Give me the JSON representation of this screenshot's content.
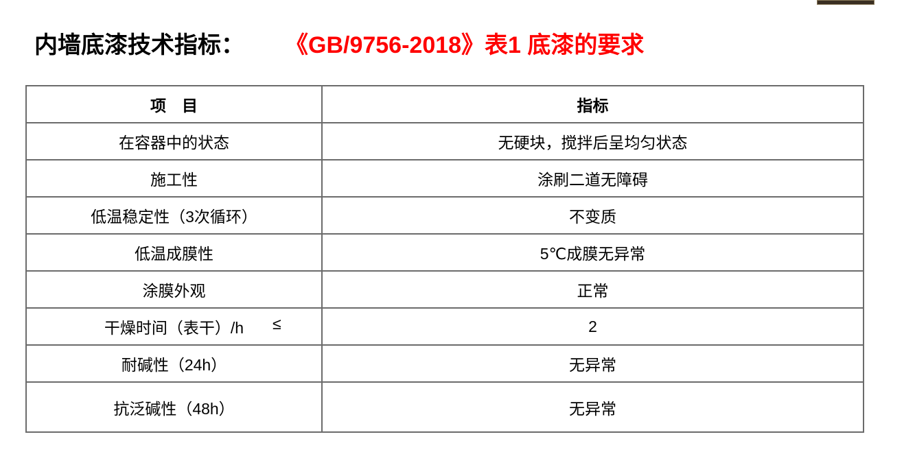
{
  "title": {
    "prefix": "内墙底漆技术指标：",
    "standard": "《GB/9756-2018》表1 底漆的要求"
  },
  "table": {
    "headers": [
      "项　目",
      "指标"
    ],
    "rows": [
      {
        "item": "在容器中的状态",
        "value": "无硬块，搅拌后呈均匀状态"
      },
      {
        "item": "施工性",
        "value": "涂刷二道无障碍"
      },
      {
        "item": "低温稳定性（3次循环）",
        "value": "不变质"
      },
      {
        "item": "低温成膜性",
        "value": "5℃成膜无异常"
      },
      {
        "item": "涂膜外观",
        "value": "正常"
      },
      {
        "item": "干燥时间（表干）/h",
        "qualifier": "≤",
        "value": "2"
      },
      {
        "item": "耐碱性（24h）",
        "value": "无异常"
      },
      {
        "item": "抗泛碱性（48h）",
        "value": "无异常"
      }
    ]
  },
  "colors": {
    "accent": "#ff0000",
    "border": "#6b6b6b"
  }
}
